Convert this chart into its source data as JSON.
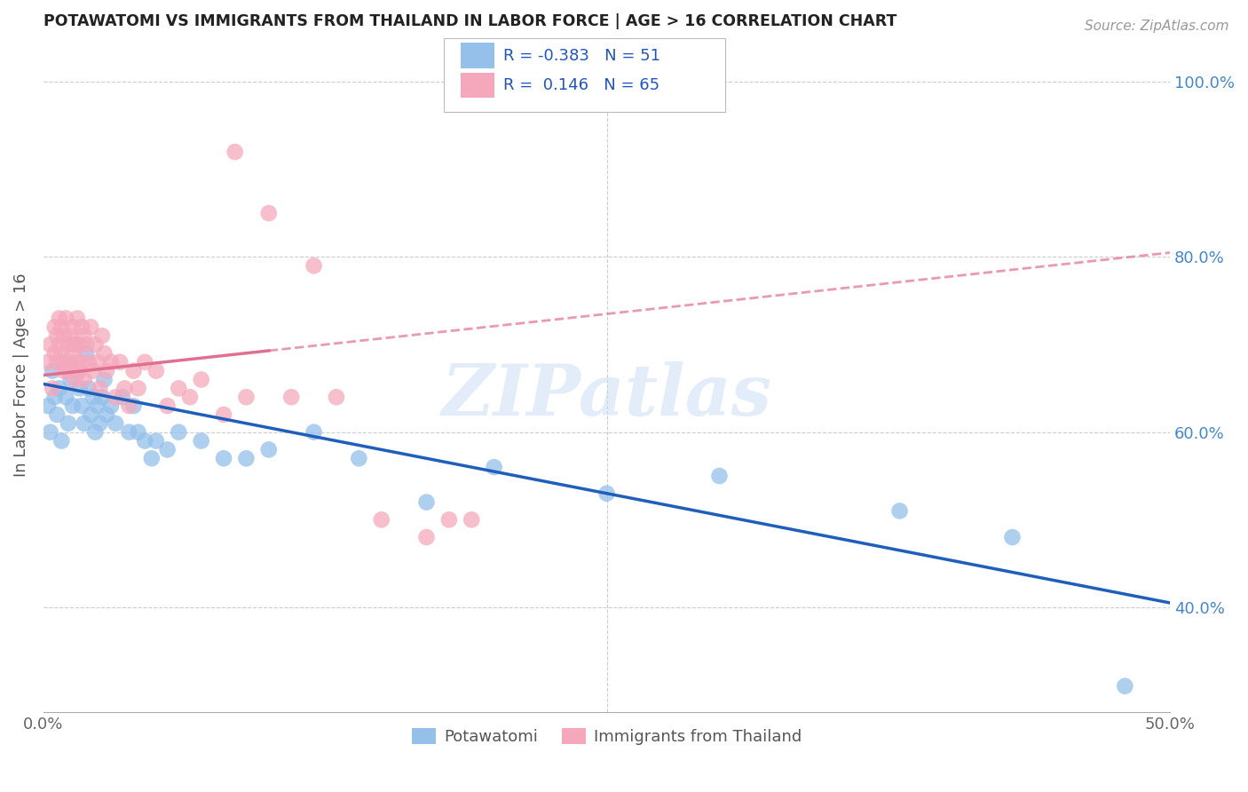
{
  "title": "POTAWATOMI VS IMMIGRANTS FROM THAILAND IN LABOR FORCE | AGE > 16 CORRELATION CHART",
  "source": "Source: ZipAtlas.com",
  "ylabel": "In Labor Force | Age > 16",
  "xlim": [
    0.0,
    0.5
  ],
  "ylim": [
    0.28,
    1.05
  ],
  "xticks": [
    0.0,
    0.1,
    0.2,
    0.3,
    0.4,
    0.5
  ],
  "xticklabels": [
    "0.0%",
    "",
    "",
    "",
    "",
    "50.0%"
  ],
  "yticks": [
    0.4,
    0.6,
    0.8,
    1.0
  ],
  "yticklabels_right": [
    "40.0%",
    "60.0%",
    "80.0%",
    "100.0%"
  ],
  "blue_R": -0.383,
  "blue_N": 51,
  "pink_R": 0.146,
  "pink_N": 65,
  "blue_color": "#94C0EA",
  "pink_color": "#F5A8BC",
  "blue_line_color": "#1F5FBB",
  "pink_line_color": "#E07090",
  "watermark": "ZIPatlas",
  "legend_label_blue": "Potawatomi",
  "legend_label_pink": "Immigrants from Thailand",
  "blue_scatter_x": [
    0.002,
    0.003,
    0.004,
    0.005,
    0.006,
    0.007,
    0.008,
    0.009,
    0.01,
    0.011,
    0.012,
    0.013,
    0.014,
    0.015,
    0.016,
    0.017,
    0.018,
    0.019,
    0.02,
    0.021,
    0.022,
    0.023,
    0.024,
    0.025,
    0.026,
    0.027,
    0.028,
    0.03,
    0.032,
    0.035,
    0.038,
    0.04,
    0.042,
    0.045,
    0.048,
    0.05,
    0.055,
    0.06,
    0.07,
    0.08,
    0.09,
    0.1,
    0.12,
    0.14,
    0.17,
    0.2,
    0.25,
    0.3,
    0.38,
    0.43,
    0.48
  ],
  "blue_scatter_y": [
    0.63,
    0.6,
    0.67,
    0.64,
    0.62,
    0.65,
    0.59,
    0.68,
    0.64,
    0.61,
    0.66,
    0.63,
    0.7,
    0.67,
    0.65,
    0.63,
    0.61,
    0.69,
    0.65,
    0.62,
    0.64,
    0.6,
    0.63,
    0.61,
    0.64,
    0.66,
    0.62,
    0.63,
    0.61,
    0.64,
    0.6,
    0.63,
    0.6,
    0.59,
    0.57,
    0.59,
    0.58,
    0.6,
    0.59,
    0.57,
    0.57,
    0.58,
    0.6,
    0.57,
    0.52,
    0.56,
    0.53,
    0.55,
    0.51,
    0.48,
    0.31
  ],
  "pink_scatter_x": [
    0.002,
    0.003,
    0.004,
    0.005,
    0.005,
    0.006,
    0.006,
    0.007,
    0.007,
    0.008,
    0.008,
    0.009,
    0.009,
    0.01,
    0.01,
    0.011,
    0.011,
    0.012,
    0.012,
    0.013,
    0.013,
    0.014,
    0.014,
    0.015,
    0.015,
    0.016,
    0.016,
    0.017,
    0.017,
    0.018,
    0.018,
    0.019,
    0.02,
    0.021,
    0.022,
    0.023,
    0.024,
    0.025,
    0.026,
    0.027,
    0.028,
    0.03,
    0.032,
    0.034,
    0.036,
    0.038,
    0.04,
    0.042,
    0.045,
    0.05,
    0.055,
    0.06,
    0.065,
    0.07,
    0.08,
    0.085,
    0.09,
    0.1,
    0.11,
    0.12,
    0.13,
    0.15,
    0.17,
    0.18,
    0.19
  ],
  "pink_scatter_y": [
    0.68,
    0.7,
    0.65,
    0.72,
    0.69,
    0.71,
    0.68,
    0.73,
    0.7,
    0.69,
    0.72,
    0.67,
    0.71,
    0.68,
    0.73,
    0.7,
    0.67,
    0.71,
    0.68,
    0.72,
    0.69,
    0.66,
    0.7,
    0.68,
    0.73,
    0.7,
    0.67,
    0.72,
    0.68,
    0.71,
    0.66,
    0.7,
    0.68,
    0.72,
    0.67,
    0.7,
    0.68,
    0.65,
    0.71,
    0.69,
    0.67,
    0.68,
    0.64,
    0.68,
    0.65,
    0.63,
    0.67,
    0.65,
    0.68,
    0.67,
    0.63,
    0.65,
    0.64,
    0.66,
    0.62,
    0.92,
    0.64,
    0.85,
    0.64,
    0.79,
    0.64,
    0.5,
    0.48,
    0.5,
    0.5
  ],
  "blue_line_x0": 0.0,
  "blue_line_y0": 0.655,
  "blue_line_x1": 0.5,
  "blue_line_y1": 0.405,
  "pink_line_solid_x0": 0.0,
  "pink_line_solid_y0": 0.665,
  "pink_line_solid_x1": 0.1,
  "pink_line_solid_y1": 0.693,
  "pink_line_dash_x0": 0.1,
  "pink_line_dash_y0": 0.693,
  "pink_line_dash_x1": 0.5,
  "pink_line_dash_y1": 0.805
}
